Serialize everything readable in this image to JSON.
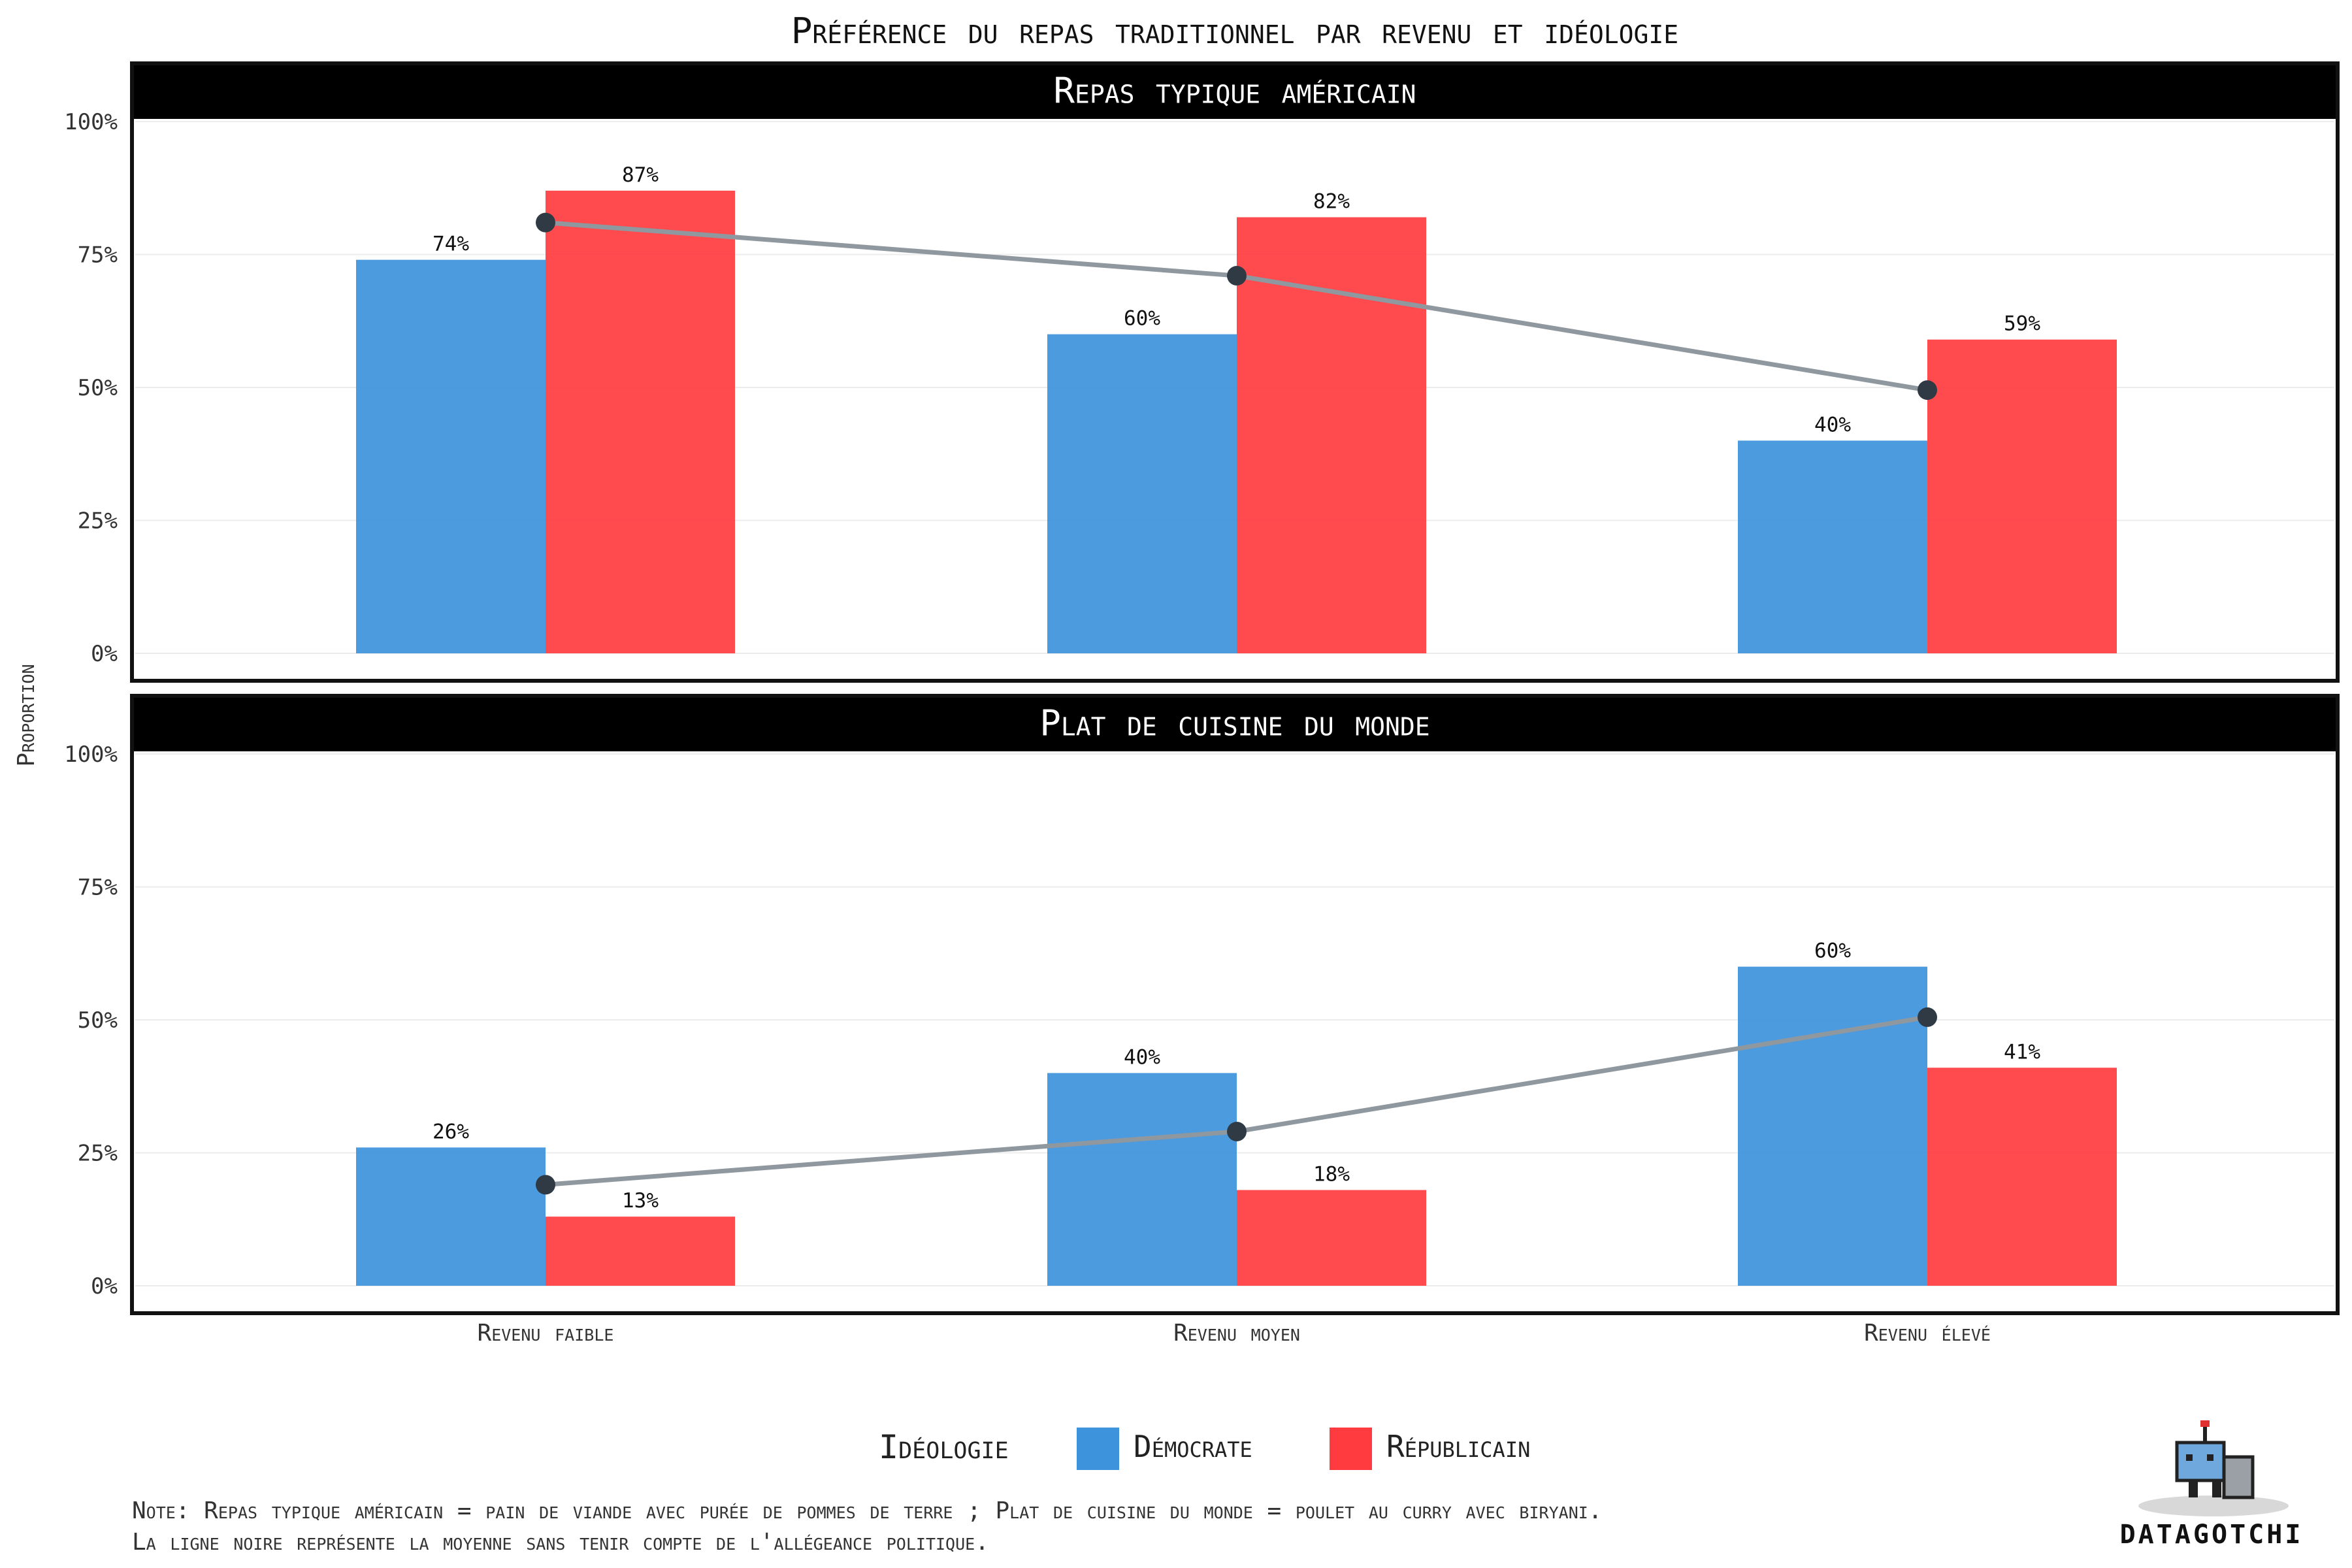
{
  "title": "Préférence du repas traditionnel par revenu et idéologie",
  "colors": {
    "democrat": "#3d93dc",
    "republican": "#ff3b3f",
    "mean_line": "#8f979f",
    "mean_point": "#2f3a44",
    "strip_bg": "#000000",
    "grid": "#ececec"
  },
  "legend": {
    "title": "Idéologie",
    "items": [
      {
        "label": "Démocrate",
        "color": "#3d93dc"
      },
      {
        "label": "Républicain",
        "color": "#ff3b3f"
      }
    ]
  },
  "note": {
    "line1": "Note: Repas typique américain = pain de viande avec purée de pommes de terre ; Plat de cuisine du monde = poulet au curry avec biryani.",
    "line2": "La ligne noire représente la moyenne sans tenir compte de l'allégeance politique."
  },
  "brand": "DATAGOTCHI",
  "chart_data": {
    "type": "bar",
    "categories": [
      "Revenu faible",
      "Revenu moyen",
      "Revenu élevé"
    ],
    "xlabel": "",
    "ylabel": "Proportion",
    "ylim": [
      0,
      1
    ],
    "yticks": [
      "0%",
      "25%",
      "50%",
      "75%",
      "100%"
    ],
    "legend_position": "bottom",
    "grid": true,
    "panels": [
      {
        "name": "Repas typique américain",
        "series": [
          {
            "name": "Démocrate",
            "values": [
              0.74,
              0.6,
              0.4
            ],
            "labels": [
              "74%",
              "60%",
              "40%"
            ]
          },
          {
            "name": "Républicain",
            "values": [
              0.87,
              0.82,
              0.59
            ],
            "labels": [
              "87%",
              "82%",
              "59%"
            ]
          }
        ],
        "mean": [
          0.81,
          0.71,
          0.495
        ]
      },
      {
        "name": "Plat de cuisine du monde",
        "series": [
          {
            "name": "Démocrate",
            "values": [
              0.26,
              0.4,
              0.6
            ],
            "labels": [
              "26%",
              "40%",
              "60%"
            ]
          },
          {
            "name": "Républicain",
            "values": [
              0.13,
              0.18,
              0.41
            ],
            "labels": [
              "13%",
              "18%",
              "41%"
            ]
          }
        ],
        "mean": [
          0.19,
          0.29,
          0.505
        ]
      }
    ]
  }
}
